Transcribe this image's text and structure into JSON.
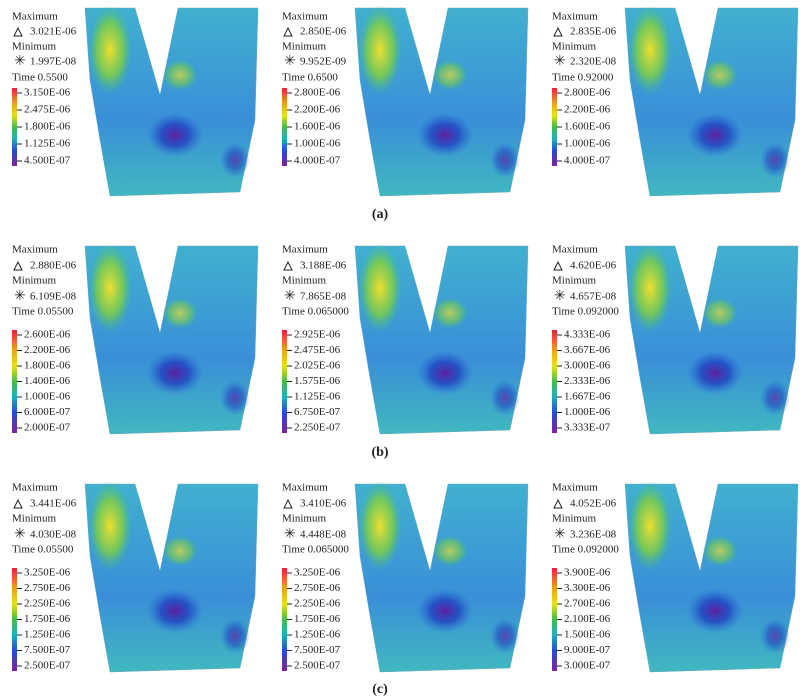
{
  "panels": [
    {
      "title_max": "Maximum",
      "max": "3.021E-06",
      "title_min": "Minimum",
      "min": "1.997E-08",
      "time": "Time 0.5500",
      "legend": [
        "3.150E-06",
        "2.475E-06",
        "1.800E-06",
        "1.125E-06",
        "4.500E-07"
      ]
    },
    {
      "title_max": "Maximum",
      "max": "2.850E-06",
      "title_min": "Minimum",
      "min": "9.952E-09",
      "time": "Time 0.6500",
      "legend": [
        "2.800E-06",
        "2.200E-06",
        "1.600E-06",
        "1.000E-06",
        "4.000E-07"
      ]
    },
    {
      "title_max": "Maximum",
      "max": "2.835E-06",
      "title_min": "Minimum",
      "min": "2.320E-08",
      "time": "Time 0.92000",
      "legend": [
        "2.800E-06",
        "2.200E-06",
        "1.600E-06",
        "1.000E-06",
        "4.000E-07"
      ]
    },
    {
      "title_max": "Maximum",
      "max": "2.880E-06",
      "title_min": "Minimum",
      "min": "6.109E-08",
      "time": "Time 0.05500",
      "legend": [
        "2.600E-06",
        "2.200E-06",
        "1.800E-06",
        "1.400E-06",
        "1.000E-06",
        "6.000E-07",
        "2.000E-07"
      ]
    },
    {
      "title_max": "Maximum",
      "max": "3.188E-06",
      "title_min": "Minimum",
      "min": "7.865E-08",
      "time": "Time 0.065000",
      "legend": [
        "2.925E-06",
        "2.475E-06",
        "2.025E-06",
        "1.575E-06",
        "1.125E-06",
        "6.750E-07",
        "2.250E-07"
      ]
    },
    {
      "title_max": "Maximum",
      "max": "4.620E-06",
      "title_min": "Minimum",
      "min": "4.657E-08",
      "time": "Time 0.092000",
      "legend": [
        "4.333E-06",
        "3.667E-06",
        "3.000E-06",
        "2.333E-06",
        "1.667E-06",
        "1.000E-06",
        "3.333E-07"
      ]
    },
    {
      "title_max": "Maximum",
      "max": "3.441E-06",
      "title_min": "Minimum",
      "min": "4.030E-08",
      "time": "Time 0.05500",
      "legend": [
        "3.250E-06",
        "2.750E-06",
        "2.250E-06",
        "1.750E-06",
        "1.250E-06",
        "7.500E-07",
        "2.500E-07"
      ]
    },
    {
      "title_max": "Maximum",
      "max": "3.410E-06",
      "title_min": "Minimum",
      "min": "4.448E-08",
      "time": "Time 0.065000",
      "legend": [
        "3.250E-06",
        "2.750E-06",
        "2.250E-06",
        "1.750E-06",
        "1.250E-06",
        "7.500E-07",
        "2.500E-07"
      ]
    },
    {
      "title_max": "Maximum",
      "max": "4.052E-06",
      "title_min": "Minimum",
      "min": "3.236E-08",
      "time": "Time 0.092000",
      "legend": [
        "3.900E-06",
        "3.300E-06",
        "2.700E-06",
        "2.100E-06",
        "1.500E-06",
        "9.000E-07",
        "3.000E-07"
      ]
    }
  ],
  "row_labels": [
    "(a)",
    "(b)",
    "(c)"
  ]
}
